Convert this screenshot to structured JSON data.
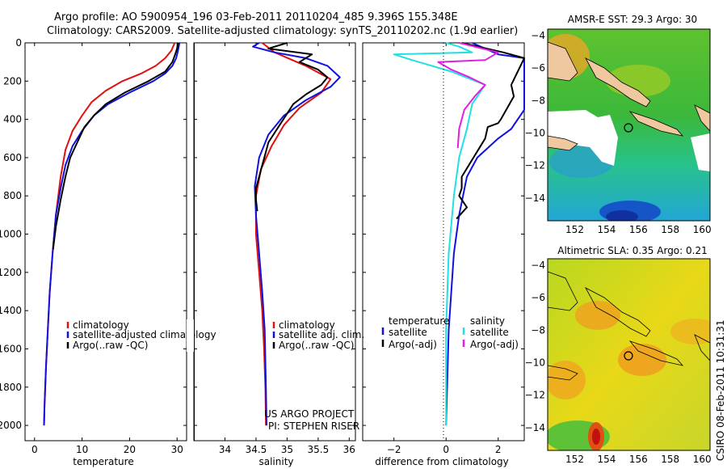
{
  "header": {
    "line1": "Argo profile: AO 5900954_196 03-Feb-2011 20110204_485 9.396S 155.348E",
    "line2": "Climatology: CARS2009. Satellite-adjusted climatology: synTS_20110202.nc (1.9d earlier)"
  },
  "colors": {
    "climatology": "#e01010",
    "satellite": "#1010e0",
    "argo": "#000000",
    "sal_satellite": "#22e0e0",
    "sal_argo": "#e020e0"
  },
  "chart_data": [
    {
      "type": "line",
      "id": "temperature",
      "xlabel": "temperature",
      "ylabel": "",
      "xlim": [
        -2,
        32
      ],
      "ylim": [
        2080,
        0
      ],
      "xticks": [
        0,
        10,
        20,
        30
      ],
      "yticks": [
        0,
        200,
        400,
        600,
        800,
        1000,
        1200,
        1400,
        1600,
        1800,
        2000
      ],
      "legend": [
        "climatology",
        "satellite-adjusted climatology",
        "Argo(..raw -QC)"
      ],
      "series": [
        {
          "name": "climatology",
          "x": [
            29.5,
            28.8,
            27.5,
            25.5,
            22.5,
            18.5,
            15,
            12,
            10,
            8,
            6.5,
            5.5,
            4.5,
            3.8,
            3.2,
            2.8,
            2.4,
            2.1,
            2
          ],
          "y": [
            0,
            40,
            80,
            120,
            160,
            200,
            250,
            310,
            380,
            460,
            560,
            700,
            900,
            1100,
            1300,
            1500,
            1700,
            1900,
            2000
          ]
        },
        {
          "name": "satellite",
          "x": [
            30.5,
            30.2,
            29.8,
            29,
            27.5,
            25,
            20,
            15.5,
            12.5,
            10,
            8,
            6.5,
            5.5,
            4.5,
            3.8,
            3.2,
            2.8,
            2.4,
            2.1,
            2
          ],
          "y": [
            0,
            40,
            80,
            120,
            160,
            200,
            260,
            320,
            380,
            460,
            540,
            640,
            760,
            900,
            1100,
            1300,
            1500,
            1700,
            1900,
            2000
          ]
        },
        {
          "name": "argo",
          "x": [
            30.2,
            30,
            29.6,
            29,
            27.5,
            24,
            19,
            15,
            12.5,
            10.5,
            9,
            7.5,
            6.5,
            5.5,
            4.5,
            3.9
          ],
          "y": [
            0,
            30,
            60,
            100,
            150,
            200,
            260,
            320,
            380,
            440,
            520,
            600,
            700,
            820,
            960,
            1080
          ]
        }
      ]
    },
    {
      "type": "line",
      "id": "salinity",
      "xlabel": "salinity",
      "xlim": [
        33.5,
        36.1
      ],
      "ylim": [
        2080,
        0
      ],
      "xticks": [
        34,
        34.5,
        35,
        35.5,
        36
      ],
      "legend": [
        "climatology",
        "satellite adj. clim.",
        "Argo(..raw -QC)"
      ],
      "series": [
        {
          "name": "climatology",
          "x": [
            34.6,
            34.8,
            35.3,
            35.7,
            35.55,
            35.2,
            34.95,
            34.75,
            34.58,
            34.5,
            34.5,
            34.55,
            34.6,
            34.63,
            34.65,
            34.66
          ],
          "y": [
            0,
            50,
            120,
            190,
            260,
            340,
            430,
            540,
            660,
            800,
            1000,
            1200,
            1400,
            1600,
            1800,
            2000
          ]
        },
        {
          "name": "satellite",
          "x": [
            34.55,
            34.45,
            34.8,
            35.3,
            35.65,
            35.85,
            35.7,
            35.3,
            34.95,
            34.7,
            34.55,
            34.48,
            34.5,
            34.55,
            34.6,
            34.64,
            34.66,
            34.67
          ],
          "y": [
            0,
            20,
            50,
            80,
            120,
            180,
            230,
            300,
            380,
            480,
            600,
            750,
            900,
            1100,
            1300,
            1500,
            1800,
            2000
          ]
        },
        {
          "name": "argo",
          "x": [
            35,
            34.7,
            35.4,
            35.2,
            35.5,
            35.65,
            35.55,
            35.3,
            35.1,
            35,
            34.9,
            34.8,
            34.7,
            34.65,
            34.6,
            34.55,
            34.5,
            34.5,
            34.52
          ],
          "y": [
            0,
            30,
            60,
            100,
            140,
            180,
            220,
            270,
            320,
            370,
            420,
            470,
            520,
            580,
            640,
            700,
            760,
            820,
            880
          ]
        }
      ]
    },
    {
      "type": "line",
      "id": "difference",
      "xlabel": "difference from climatology",
      "xlim": [
        -3.2,
        3
      ],
      "ylim": [
        2080,
        0
      ],
      "xticks": [
        -2,
        0,
        2
      ],
      "legend": [
        "temperature",
        "satellite",
        "Argo(-adj)",
        "salinity",
        "satellite",
        "Argo(-adj)"
      ],
      "series": [
        {
          "name": "temperature satellite",
          "x": [
            1,
            2,
            3.2,
            3.3,
            3.3,
            3.3,
            2.5,
            2,
            1.2,
            0.8,
            0.5,
            0.3,
            0.1,
            0
          ],
          "y": [
            0,
            60,
            80,
            150,
            250,
            350,
            450,
            500,
            600,
            700,
            900,
            1100,
            1500,
            2000
          ]
        },
        {
          "name": "temperature Argo(-adj)",
          "x": [
            0.6,
            2.2,
            3.2,
            2.5,
            2.6,
            2.1,
            2,
            1.6,
            1.5,
            0.6,
            0.6,
            0.5,
            0.8,
            0.4
          ],
          "y": [
            0,
            50,
            80,
            220,
            280,
            400,
            420,
            440,
            500,
            700,
            760,
            800,
            860,
            920
          ]
        },
        {
          "name": "salinity satellite",
          "x": [
            0,
            0.5,
            1,
            -2,
            -1.3,
            0.2,
            1.5,
            1,
            0.8,
            0.5,
            0.3,
            0.1,
            0,
            0
          ],
          "y": [
            0,
            20,
            50,
            60,
            90,
            150,
            220,
            320,
            450,
            600,
            800,
            1100,
            1500,
            2000
          ]
        },
        {
          "name": "salinity Argo(-adj)",
          "x": [
            0.5,
            2,
            1.5,
            -0.3,
            0.2,
            0.9,
            1.5,
            1.1,
            0.7,
            0.5,
            0.45
          ],
          "y": [
            0,
            50,
            90,
            100,
            140,
            180,
            220,
            280,
            350,
            450,
            550
          ]
        }
      ],
      "credits": [
        "US ARGO PROJECT",
        "PI: STEPHEN RISER"
      ]
    },
    {
      "type": "heatmap",
      "id": "sst_map",
      "title": "AMSR-E SST: 29.3 Argo: 30",
      "xlim": [
        150.3,
        160.5
      ],
      "ylim": [
        -15.4,
        -3.6
      ],
      "xticks": [
        152,
        154,
        156,
        158,
        160
      ],
      "yticks": [
        -4,
        -6,
        -8,
        -10,
        -12,
        -14
      ],
      "marker": {
        "lon": 155.35,
        "lat": -9.4
      }
    },
    {
      "type": "heatmap",
      "id": "sla_map",
      "title": "Altimetric SLA: 0.35 Argo: 0.21",
      "xlim": [
        150.3,
        160.5
      ],
      "ylim": [
        -15.4,
        -3.6
      ],
      "xticks": [
        152,
        154,
        156,
        158,
        160
      ],
      "yticks": [
        -4,
        -6,
        -8,
        -10,
        -12,
        -14
      ],
      "marker": {
        "lon": 155.35,
        "lat": -9.4
      }
    }
  ],
  "stamp": "CSIRO 08-Feb-2011 10:31:31"
}
